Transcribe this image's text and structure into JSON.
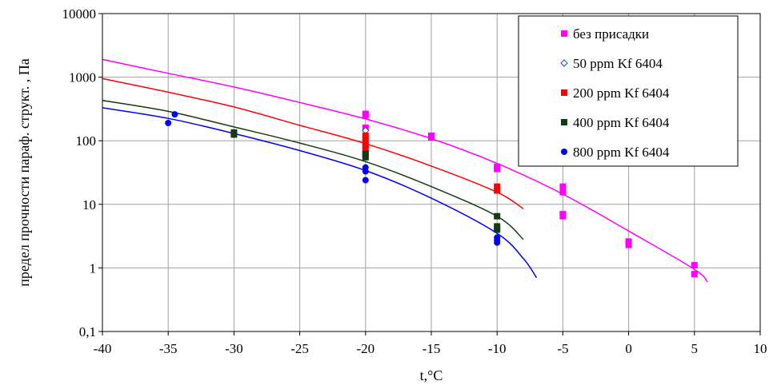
{
  "chart_data": {
    "type": "scatter",
    "xlabel": "t,°C",
    "ylabel": "предел прочности параф. структ. , Па",
    "xlim": [
      -40,
      10
    ],
    "ylim": [
      0.1,
      10000
    ],
    "yscale": "log",
    "grid": true,
    "legend_position": "top-right",
    "x_ticks": [
      "-40",
      "-35",
      "-30",
      "-25",
      "-20",
      "-15",
      "-10",
      "-5",
      "0",
      "5",
      "10"
    ],
    "y_ticks": [
      "0,1",
      "1",
      "10",
      "100",
      "1000",
      "10000"
    ],
    "series": [
      {
        "name": "без присадки",
        "color": "#ff00ff",
        "marker": "square",
        "points": [
          [
            -20,
            265
          ],
          [
            -20,
            250
          ],
          [
            -20,
            160
          ],
          [
            -15,
            120
          ],
          [
            -15,
            113
          ],
          [
            -10,
            39
          ],
          [
            -10,
            36
          ],
          [
            -5,
            19
          ],
          [
            -5,
            15.5
          ],
          [
            -5,
            7
          ],
          [
            -5,
            6.5
          ],
          [
            0,
            2.6
          ],
          [
            0,
            2.3
          ],
          [
            5,
            1.1
          ],
          [
            5,
            0.8
          ]
        ],
        "curve": [
          [
            -40,
            1900
          ],
          [
            -35,
            1150
          ],
          [
            -30,
            700
          ],
          [
            -25,
            400
          ],
          [
            -20,
            220
          ],
          [
            -15,
            108
          ],
          [
            -10,
            44
          ],
          [
            -5,
            14.5
          ],
          [
            0,
            3.8
          ],
          [
            5,
            0.95
          ],
          [
            6,
            0.6
          ]
        ]
      },
      {
        "name": "50 ppm Kf 6404",
        "color": "#1f4fbf",
        "marker": "diamond-open",
        "points": [
          [
            -20,
            145
          ]
        ],
        "curve": []
      },
      {
        "name": "200 ppm Kf 6404",
        "color": "#ff0000",
        "marker": "square",
        "points": [
          [
            -20,
            120
          ],
          [
            -20,
            100
          ],
          [
            -20,
            85
          ],
          [
            -20,
            75
          ],
          [
            -20,
            62
          ],
          [
            -10,
            19
          ],
          [
            -10,
            16.5
          ]
        ],
        "curve": [
          [
            -40,
            950
          ],
          [
            -35,
            580
          ],
          [
            -30,
            340
          ],
          [
            -25,
            175
          ],
          [
            -20,
            90
          ],
          [
            -15,
            40
          ],
          [
            -10,
            15.5
          ],
          [
            -8,
            8.5
          ]
        ]
      },
      {
        "name": "400 ppm Kf 6404",
        "color": "#143c14",
        "marker": "square",
        "points": [
          [
            -30,
            135
          ],
          [
            -30,
            125
          ],
          [
            -20,
            62
          ],
          [
            -20,
            55
          ],
          [
            -10,
            6.5
          ],
          [
            -10,
            4.5
          ],
          [
            -10,
            4.0
          ]
        ],
        "curve": [
          [
            -40,
            430
          ],
          [
            -35,
            290
          ],
          [
            -30,
            165
          ],
          [
            -25,
            92
          ],
          [
            -20,
            47
          ],
          [
            -15,
            19
          ],
          [
            -10,
            6.5
          ],
          [
            -8,
            2.8
          ]
        ]
      },
      {
        "name": "800 ppm Kf 6404",
        "color": "#0000ff",
        "marker": "circle",
        "points": [
          [
            -35,
            190
          ],
          [
            -34.5,
            260
          ],
          [
            -20,
            38
          ],
          [
            -20,
            33
          ],
          [
            -20,
            24
          ],
          [
            -10,
            3.0
          ],
          [
            -10,
            2.7
          ],
          [
            -10,
            2.5
          ]
        ],
        "curve": [
          [
            -40,
            330
          ],
          [
            -35,
            225
          ],
          [
            -30,
            130
          ],
          [
            -25,
            70
          ],
          [
            -20,
            34
          ],
          [
            -15,
            12.5
          ],
          [
            -10,
            3.5
          ],
          [
            -8,
            1.4
          ],
          [
            -7,
            0.7
          ]
        ]
      }
    ]
  }
}
